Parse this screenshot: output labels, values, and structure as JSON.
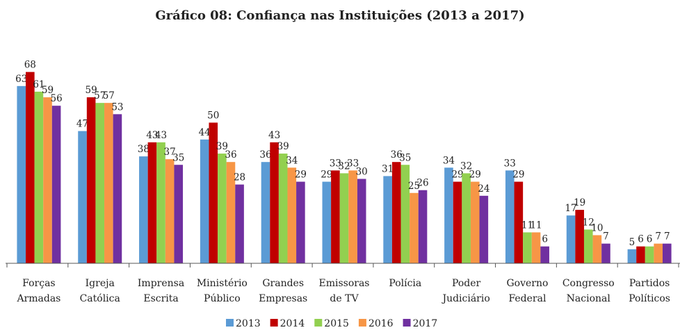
{
  "chart_data": {
    "type": "bar",
    "title": "Gráfico 08: Confiança nas Instituições (2013 a 2017)",
    "categories": [
      "Forças Armadas",
      "Igreja Católica",
      "Imprensa Escrita",
      "Ministério Público",
      "Grandes Empresas",
      "Emissoras de TV",
      "Polícia",
      "Poder Judiciário",
      "Governo Federal",
      "Congresso Nacional",
      "Partidos Políticos"
    ],
    "series": [
      {
        "name": "2013",
        "color": "#5b9bd5",
        "values": [
          63,
          47,
          38,
          44,
          36,
          29,
          31,
          34,
          33,
          17,
          5
        ]
      },
      {
        "name": "2014",
        "color": "#c00000",
        "values": [
          68,
          59,
          43,
          50,
          43,
          33,
          36,
          29,
          29,
          19,
          6
        ]
      },
      {
        "name": "2015",
        "color": "#92d050",
        "values": [
          61,
          57,
          43,
          39,
          39,
          32,
          35,
          32,
          11,
          12,
          6
        ]
      },
      {
        "name": "2016",
        "color": "#f79646",
        "values": [
          59,
          57,
          37,
          36,
          34,
          33,
          25,
          29,
          11,
          10,
          7
        ]
      },
      {
        "name": "2017",
        "color": "#7030a0",
        "values": [
          56,
          53,
          35,
          28,
          29,
          30,
          26,
          24,
          6,
          7,
          7
        ]
      }
    ],
    "legend": "bottom"
  }
}
